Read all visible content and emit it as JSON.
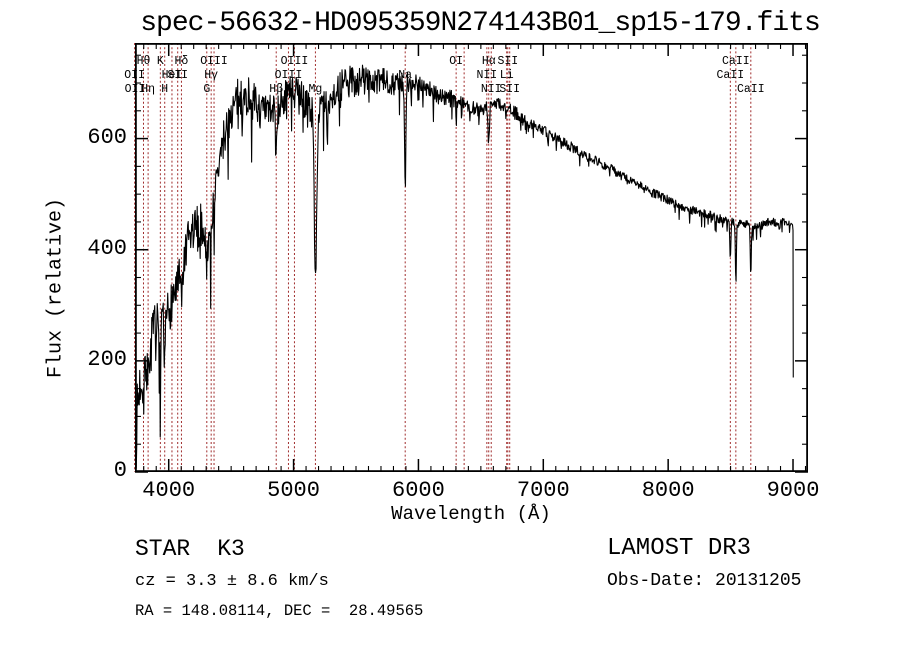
{
  "title": "spec-56632-HD095359N274143B01_sp15-179.fits",
  "footer": {
    "class_label": "STAR",
    "subclass": "K3",
    "cz_line": "cz = 3.3 ± 8.6 km/s",
    "radec_line": "RA = 148.08114, DEC =  28.49565",
    "survey": "LAMOST DR3",
    "obs_date_line": "Obs-Date: 20131205"
  },
  "chart_data": {
    "type": "line",
    "title": "spec-56632-HD095359N274143B01_sp15-179.fits",
    "xlabel": "Wavelength (Å)",
    "ylabel": "Flux (relative)",
    "xlim": [
      3730,
      9120
    ],
    "ylim": [
      0,
      772
    ],
    "x_major_ticks": [
      4000,
      5000,
      6000,
      7000,
      8000,
      9000
    ],
    "x_minor_step": 100,
    "y_major_ticks": [
      0,
      200,
      400,
      600
    ],
    "y_minor_step": 50,
    "grid": false,
    "legend": "none",
    "frame_color": "#000000",
    "marker_line_color": "#a02c2c",
    "series": [
      {
        "name": "spectrum",
        "color": "#000000",
        "x_start": 3740,
        "x_end": 9000,
        "end_drop_flux": 170,
        "continuum_anchors": [
          [
            3740,
            90
          ],
          [
            3770,
            160
          ],
          [
            3800,
            190
          ],
          [
            3840,
            210
          ],
          [
            3880,
            250
          ],
          [
            3920,
            255
          ],
          [
            3960,
            265
          ],
          [
            4000,
            290
          ],
          [
            4040,
            320
          ],
          [
            4080,
            340
          ],
          [
            4120,
            370
          ],
          [
            4160,
            415
          ],
          [
            4200,
            435
          ],
          [
            4240,
            440
          ],
          [
            4280,
            445
          ],
          [
            4320,
            455
          ],
          [
            4360,
            490
          ],
          [
            4400,
            545
          ],
          [
            4440,
            600
          ],
          [
            4480,
            635
          ],
          [
            4520,
            655
          ],
          [
            4560,
            675
          ],
          [
            4600,
            668
          ],
          [
            4640,
            678
          ],
          [
            4680,
            665
          ],
          [
            4720,
            655
          ],
          [
            4760,
            648
          ],
          [
            4800,
            650
          ],
          [
            4840,
            655
          ],
          [
            4880,
            655
          ],
          [
            4920,
            670
          ],
          [
            4960,
            688
          ],
          [
            5000,
            678
          ],
          [
            5040,
            682
          ],
          [
            5080,
            668
          ],
          [
            5120,
            660
          ],
          [
            5160,
            648
          ],
          [
            5200,
            645
          ],
          [
            5240,
            660
          ],
          [
            5280,
            672
          ],
          [
            5320,
            680
          ],
          [
            5360,
            690
          ],
          [
            5400,
            696
          ],
          [
            5440,
            700
          ],
          [
            5480,
            706
          ],
          [
            5520,
            702
          ],
          [
            5560,
            708
          ],
          [
            5600,
            704
          ],
          [
            5640,
            700
          ],
          [
            5680,
            703
          ],
          [
            5720,
            705
          ],
          [
            5760,
            702
          ],
          [
            5800,
            700
          ],
          [
            5840,
            702
          ],
          [
            5880,
            698
          ],
          [
            5920,
            700
          ],
          [
            5960,
            703
          ],
          [
            6000,
            702
          ],
          [
            6040,
            696
          ],
          [
            6080,
            690
          ],
          [
            6120,
            684
          ],
          [
            6160,
            678
          ],
          [
            6200,
            674
          ],
          [
            6240,
            672
          ],
          [
            6280,
            670
          ],
          [
            6320,
            668
          ],
          [
            6360,
            664
          ],
          [
            6400,
            660
          ],
          [
            6440,
            655
          ],
          [
            6480,
            652
          ],
          [
            6520,
            655
          ],
          [
            6560,
            658
          ],
          [
            6600,
            662
          ],
          [
            6640,
            664
          ],
          [
            6680,
            658
          ],
          [
            6720,
            652
          ],
          [
            6760,
            648
          ],
          [
            6800,
            642
          ],
          [
            6880,
            628
          ],
          [
            6960,
            622
          ],
          [
            7040,
            608
          ],
          [
            7120,
            600
          ],
          [
            7200,
            588
          ],
          [
            7280,
            578
          ],
          [
            7360,
            570
          ],
          [
            7440,
            558
          ],
          [
            7520,
            548
          ],
          [
            7600,
            538
          ],
          [
            7680,
            525
          ],
          [
            7760,
            518
          ],
          [
            7840,
            505
          ],
          [
            7920,
            498
          ],
          [
            8000,
            490
          ],
          [
            8080,
            480
          ],
          [
            8160,
            474
          ],
          [
            8240,
            468
          ],
          [
            8320,
            464
          ],
          [
            8400,
            456
          ],
          [
            8480,
            452
          ],
          [
            8560,
            448
          ],
          [
            8640,
            446
          ],
          [
            8720,
            440
          ],
          [
            8780,
            448
          ],
          [
            8840,
            452
          ],
          [
            8880,
            442
          ],
          [
            8920,
            450
          ],
          [
            8960,
            446
          ],
          [
            9000,
            442
          ]
        ],
        "absorption_features": [
          [
            3798,
            45,
            5
          ],
          [
            3835,
            50,
            5
          ],
          [
            3933,
            100,
            6
          ],
          [
            3968,
            85,
            6
          ],
          [
            4102,
            65,
            5
          ],
          [
            4305,
            75,
            9
          ],
          [
            4340,
            60,
            5
          ],
          [
            4861,
            90,
            6
          ],
          [
            5175,
            272,
            10
          ],
          [
            5270,
            60,
            5
          ],
          [
            5894,
            178,
            6
          ],
          [
            6302,
            22,
            4
          ],
          [
            6563,
            70,
            5
          ],
          [
            8498,
            72,
            4
          ],
          [
            8542,
            100,
            4
          ],
          [
            8662,
            88,
            4
          ]
        ],
        "noise_profile": [
          [
            3730,
            4000,
            52
          ],
          [
            4000,
            4300,
            42
          ],
          [
            4300,
            4700,
            36
          ],
          [
            4700,
            5200,
            30
          ],
          [
            5200,
            5600,
            30
          ],
          [
            5600,
            5950,
            22
          ],
          [
            5950,
            6300,
            16
          ],
          [
            6300,
            6800,
            12
          ],
          [
            6800,
            7600,
            9
          ],
          [
            7600,
            9120,
            8
          ]
        ],
        "seed": 7
      }
    ],
    "spectral_lines": [
      {
        "wavelength": 3727,
        "label": "OII",
        "row": 2
      },
      {
        "wavelength": 3730,
        "label": "OII",
        "row": 3
      },
      {
        "wavelength": 3798,
        "label": "Hθ",
        "row": 1
      },
      {
        "wavelength": 3835,
        "label": "Hη",
        "row": 3
      },
      {
        "wavelength": 3933,
        "label": "K",
        "row": 1
      },
      {
        "wavelength": 3968,
        "label": "H",
        "row": 3
      },
      {
        "wavelength": 4026,
        "label": "HeI",
        "row": 2
      },
      {
        "wavelength": 4072,
        "label": "SII",
        "row": 2
      },
      {
        "wavelength": 4102,
        "label": "Hδ",
        "row": 1
      },
      {
        "wavelength": 4305,
        "label": "G",
        "row": 3
      },
      {
        "wavelength": 4340,
        "label": "Hγ",
        "row": 2
      },
      {
        "wavelength": 4363,
        "label": "OIII",
        "row": 1
      },
      {
        "wavelength": 4861,
        "label": "Hβ",
        "row": 3
      },
      {
        "wavelength": 4959,
        "label": "OIII",
        "row": 2
      },
      {
        "wavelength": 5007,
        "label": "OIII",
        "row": 1
      },
      {
        "wavelength": 5175,
        "label": "Mg",
        "row": 3
      },
      {
        "wavelength": 5894,
        "label": "Na",
        "row": 2
      },
      {
        "wavelength": 6302,
        "label": "OI",
        "row": 1
      },
      {
        "wavelength": 6366,
        "label": "",
        "row": 0
      },
      {
        "wavelength": 6548,
        "label": "NII",
        "row": 2
      },
      {
        "wavelength": 6563,
        "label": "Hα",
        "row": 1
      },
      {
        "wavelength": 6583,
        "label": "NII",
        "row": 3
      },
      {
        "wavelength": 6707,
        "label": "Li",
        "row": 2
      },
      {
        "wavelength": 6716,
        "label": "SII",
        "row": 1
      },
      {
        "wavelength": 6731,
        "label": "SII",
        "row": 3
      },
      {
        "wavelength": 8498,
        "label": "CaII",
        "row": 2
      },
      {
        "wavelength": 8542,
        "label": "CaII",
        "row": 1
      },
      {
        "wavelength": 8662,
        "label": "CaII",
        "row": 3
      }
    ]
  }
}
